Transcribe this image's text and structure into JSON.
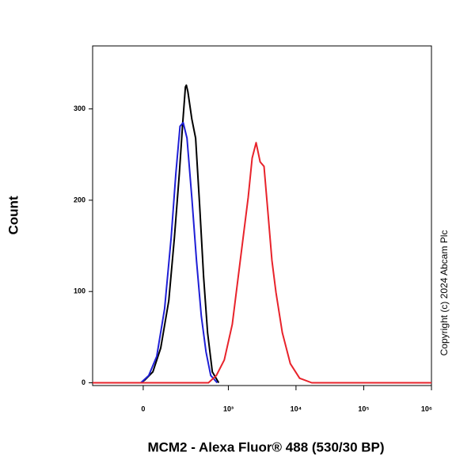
{
  "chart_data": {
    "type": "line",
    "xlabel": "MCM2 - Alexa Fluor® 488 (530/30 BP)",
    "ylabel": "Count",
    "annotation": "Copyright (c) 2024 Abcam Plc",
    "xscale": "biexponential",
    "xlim": [
      -300,
      1000000
    ],
    "ylim": [
      -3,
      369
    ],
    "xticks": [
      0,
      {
        "value": 1000,
        "label": "10³"
      },
      {
        "value": 10000,
        "label": "10⁴"
      },
      {
        "value": 100000,
        "label": "10⁵"
      },
      {
        "value": 1000000,
        "label": "10⁶"
      }
    ],
    "yticks": [
      0,
      100,
      200,
      300
    ],
    "series": [
      {
        "color": "#000000",
        "x": [
          -9,
          6,
          37,
          70,
          109,
          141,
          173,
          196,
          220,
          228,
          241,
          279,
          320,
          370,
          425,
          488,
          577,
          719
        ],
        "values": [
          0,
          3,
          12,
          38,
          90,
          159,
          229,
          281,
          324,
          326,
          319,
          289,
          268,
          194,
          116,
          55,
          12,
          0
        ]
      },
      {
        "color": "#1f1fd6",
        "x": [
          -9,
          21,
          53,
          88,
          122,
          150,
          178,
          202,
          233,
          279,
          330,
          392,
          463,
          546,
          682
        ],
        "values": [
          0,
          8,
          29,
          81,
          159,
          229,
          281,
          285,
          268,
          203,
          134,
          73,
          34,
          8,
          0
        ]
      },
      {
        "color": "#e8232b",
        "x": [
          -300,
          503,
          662,
          870,
          1143,
          1500,
          1965,
          2253,
          2575,
          2953,
          3374,
          3863,
          4418,
          5062,
          6283,
          8236,
          11322,
          17094,
          1000000
        ],
        "values": [
          0,
          0,
          8,
          25,
          64,
          134,
          203,
          246,
          263,
          242,
          237,
          185,
          134,
          99,
          55,
          21,
          5,
          0,
          0
        ]
      }
    ]
  }
}
